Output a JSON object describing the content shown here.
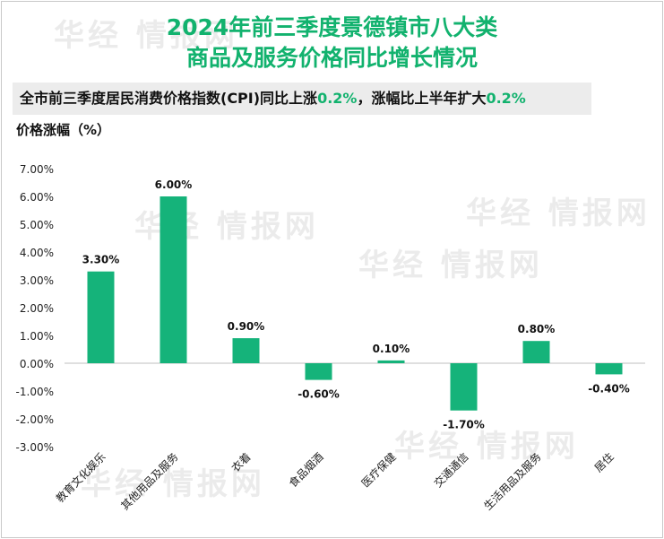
{
  "title_line1": "2024年前三季度景德镇市八大类",
  "title_line2": "商品及服务价格同比增长情况",
  "subtitle": {
    "text1": "全市前三季度居民消费价格指数(CPI)同比上涨",
    "value1": "0.2%",
    "text2": "，涨幅比上半年扩大",
    "value2": "0.2%"
  },
  "watermark": "华经 情报网",
  "colors": {
    "accent": "#12b26e",
    "bar": "#15b37a"
  },
  "chart_data": {
    "type": "bar",
    "title": "2024年前三季度景德镇市八大类商品及服务价格同比增长情况",
    "ylabel": "价格涨幅（%）",
    "xlabel": "",
    "categories": [
      "教育文化娱乐",
      "其他用品及服务",
      "衣着",
      "食品烟酒",
      "医疗保健",
      "交通通信",
      "生活用品及服务",
      "居住"
    ],
    "values": [
      3.3,
      6.0,
      0.9,
      -0.6,
      0.1,
      -1.7,
      0.8,
      -0.4
    ],
    "value_labels": [
      "3.30%",
      "6.00%",
      "0.90%",
      "-0.60%",
      "0.10%",
      "-1.70%",
      "0.80%",
      "-0.40%"
    ],
    "ylim": [
      -3,
      7
    ],
    "yticks": [
      7,
      6,
      5,
      4,
      3,
      2,
      1,
      0,
      -1,
      -2,
      -3
    ],
    "ytick_labels": [
      "7.00%",
      "6.00%",
      "5.00%",
      "4.00%",
      "3.00%",
      "2.00%",
      "1.00%",
      "0.00%",
      "-1.00%",
      "-2.00%",
      "-3.00%"
    ],
    "grid": false,
    "legend": "none"
  }
}
